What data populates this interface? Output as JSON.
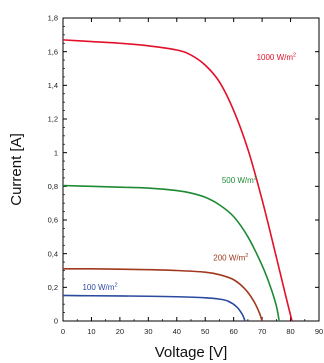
{
  "chart_data": {
    "type": "line",
    "title": "",
    "xlabel": "Voltage [V]",
    "ylabel": "Current [A]",
    "xlim": [
      0,
      90
    ],
    "ylim": [
      0,
      1.8
    ],
    "x_ticks": [
      "0",
      "10",
      "20",
      "30",
      "40",
      "50",
      "60",
      "70",
      "80",
      "90"
    ],
    "y_ticks": [
      "0",
      "0,2",
      "0,4",
      "0,6",
      "0,8",
      "1",
      "1,2",
      "1,4",
      "1,6",
      "1,8"
    ],
    "grid": false,
    "series": [
      {
        "name": "1000 W/m2",
        "label_text": "1000 W/m",
        "label_sup": "2",
        "color": "#e3102a",
        "x": [
          0,
          10,
          20,
          30,
          40,
          45,
          50,
          55,
          60,
          65,
          70,
          75,
          78,
          80.5
        ],
        "y": [
          1.67,
          1.66,
          1.65,
          1.635,
          1.61,
          1.58,
          1.52,
          1.42,
          1.25,
          1.02,
          0.72,
          0.38,
          0.17,
          0
        ]
      },
      {
        "name": "500 W/m2",
        "label_text": "500 W/m",
        "label_sup": "2",
        "color": "#1e8a34",
        "x": [
          0,
          10,
          20,
          30,
          40,
          45,
          50,
          55,
          60,
          65,
          70,
          73,
          75,
          76
        ],
        "y": [
          0.805,
          0.8,
          0.795,
          0.79,
          0.775,
          0.76,
          0.735,
          0.69,
          0.62,
          0.5,
          0.33,
          0.2,
          0.09,
          0
        ]
      },
      {
        "name": "200 W/m2",
        "label_text": "200 W/m",
        "label_sup": "2",
        "color": "#a0391e",
        "x": [
          0,
          10,
          20,
          30,
          40,
          50,
          55,
          60,
          64,
          67,
          69,
          70
        ],
        "y": [
          0.31,
          0.31,
          0.308,
          0.305,
          0.3,
          0.29,
          0.275,
          0.245,
          0.19,
          0.12,
          0.05,
          0
        ]
      },
      {
        "name": "100 W/m2",
        "label_text": "100 W/m",
        "label_sup": "2",
        "color": "#2a4aa0",
        "x": [
          0,
          10,
          20,
          30,
          40,
          50,
          55,
          58,
          61,
          63,
          64
        ],
        "y": [
          0.152,
          0.15,
          0.149,
          0.147,
          0.144,
          0.138,
          0.13,
          0.118,
          0.085,
          0.04,
          0
        ]
      }
    ]
  }
}
